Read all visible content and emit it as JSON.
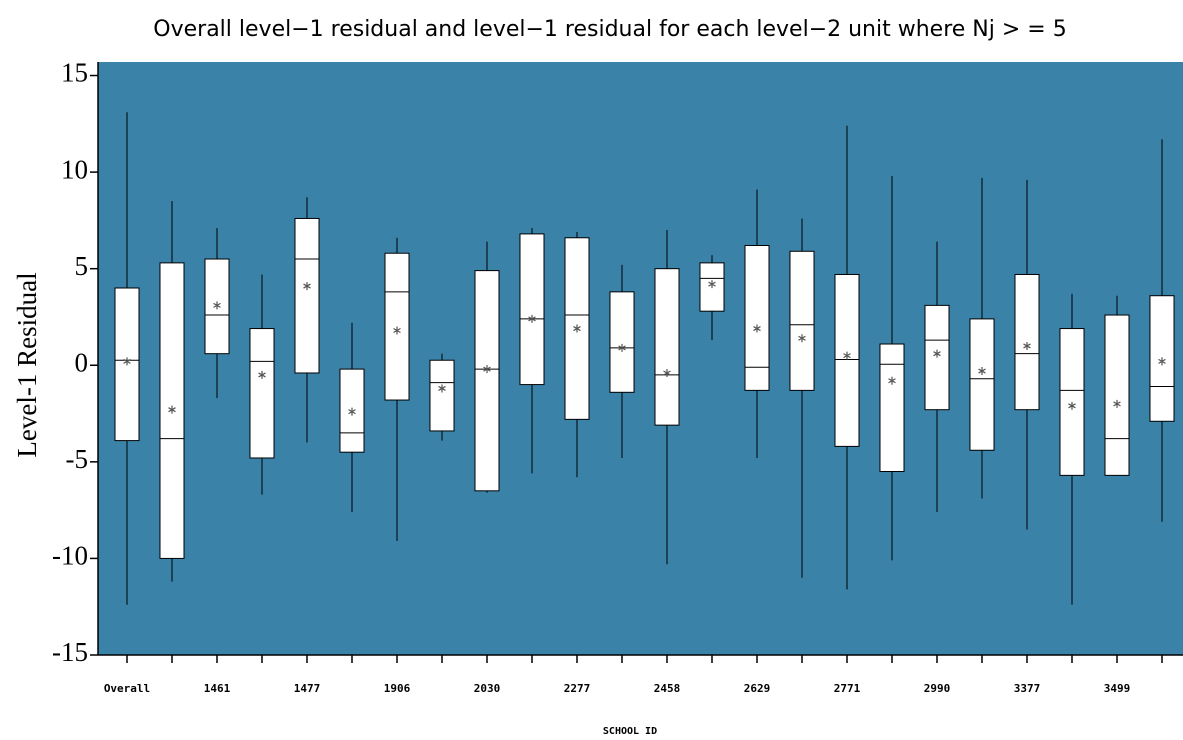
{
  "chart_data": {
    "type": "box",
    "title": "Overall level−1 residual and level−1 residual for each level−2 unit where Nj > = 5",
    "y_label": "Level-1 Residual",
    "x_label": "SCHOOL ID",
    "background": "#3a82a8",
    "box_color": "#ffffff",
    "mean_color": "#555555",
    "categories": [
      "Overall",
      null,
      "1461",
      null,
      "1477",
      null,
      "1906",
      null,
      "2030",
      null,
      "2277",
      null,
      "2458",
      null,
      "2629",
      null,
      "2771",
      null,
      "2990",
      null,
      "3377",
      null,
      "3499",
      null
    ],
    "boxes": [
      {
        "low": -12.4,
        "q1": -3.9,
        "median": 0.26,
        "q3": 4.0,
        "high": 13.1,
        "mean": 0.2
      },
      {
        "low": -11.2,
        "q1": -10.0,
        "median": -3.8,
        "q3": 5.3,
        "high": 8.5,
        "mean": -2.3
      },
      {
        "low": -1.7,
        "q1": 0.6,
        "median": 2.6,
        "q3": 5.5,
        "high": 7.1,
        "mean": 3.1
      },
      {
        "low": -6.7,
        "q1": -4.8,
        "median": 0.2,
        "q3": 1.9,
        "high": 4.7,
        "mean": -0.5
      },
      {
        "low": -4.0,
        "q1": -0.4,
        "median": 5.5,
        "q3": 7.6,
        "high": 8.7,
        "mean": 4.1
      },
      {
        "low": -7.6,
        "q1": -4.5,
        "median": -3.5,
        "q3": -0.2,
        "high": 2.2,
        "mean": -2.4
      },
      {
        "low": -9.1,
        "q1": -1.8,
        "median": 3.8,
        "q3": 5.8,
        "high": 6.6,
        "mean": 1.8
      },
      {
        "low": -3.9,
        "q1": -3.4,
        "median": -0.9,
        "q3": 0.26,
        "high": 0.6,
        "mean": -1.2
      },
      {
        "low": -6.6,
        "q1": -6.5,
        "median": -0.2,
        "q3": 4.9,
        "high": 6.4,
        "mean": -0.2
      },
      {
        "low": -5.6,
        "q1": -1.0,
        "median": 2.4,
        "q3": 6.8,
        "high": 7.1,
        "mean": 2.4
      },
      {
        "low": -5.8,
        "q1": -2.8,
        "median": 2.6,
        "q3": 6.6,
        "high": 6.9,
        "mean": 1.9
      },
      {
        "low": -4.8,
        "q1": -1.4,
        "median": 0.9,
        "q3": 3.8,
        "high": 5.2,
        "mean": 0.9
      },
      {
        "low": -10.3,
        "q1": -3.1,
        "median": -0.5,
        "q3": 5.0,
        "high": 7.0,
        "mean": -0.4
      },
      {
        "low": 1.3,
        "q1": 2.8,
        "median": 4.5,
        "q3": 5.3,
        "high": 5.7,
        "mean": 4.2
      },
      {
        "low": -4.8,
        "q1": -1.3,
        "median": -0.1,
        "q3": 6.2,
        "high": 9.1,
        "mean": 1.9
      },
      {
        "low": -11.0,
        "q1": -1.3,
        "median": 2.1,
        "q3": 5.9,
        "high": 7.6,
        "mean": 1.4
      },
      {
        "low": -11.6,
        "q1": -4.2,
        "median": 0.3,
        "q3": 4.7,
        "high": 12.4,
        "mean": 0.5
      },
      {
        "low": -10.1,
        "q1": -5.5,
        "median": 0.05,
        "q3": 1.1,
        "high": 9.8,
        "mean": -0.8
      },
      {
        "low": -7.6,
        "q1": -2.3,
        "median": 1.3,
        "q3": 3.1,
        "high": 6.4,
        "mean": 0.6
      },
      {
        "low": -6.9,
        "q1": -4.4,
        "median": -0.7,
        "q3": 2.4,
        "high": 9.7,
        "mean": -0.3
      },
      {
        "low": -8.5,
        "q1": -2.3,
        "median": 0.6,
        "q3": 4.7,
        "high": 9.6,
        "mean": 1.0
      },
      {
        "low": -12.4,
        "q1": -5.7,
        "median": -1.3,
        "q3": 1.9,
        "high": 3.7,
        "mean": -2.1
      },
      {
        "low": -5.7,
        "q1": -5.7,
        "median": -3.8,
        "q3": 2.6,
        "high": 3.6,
        "mean": -2.0
      },
      {
        "low": -8.1,
        "q1": -2.9,
        "median": -1.1,
        "q3": 3.6,
        "high": 11.7,
        "mean": 0.2
      }
    ],
    "ylim": [
      -15,
      15.7
    ],
    "yticks": [
      -15,
      -10,
      -5,
      0,
      5,
      10,
      15
    ]
  }
}
